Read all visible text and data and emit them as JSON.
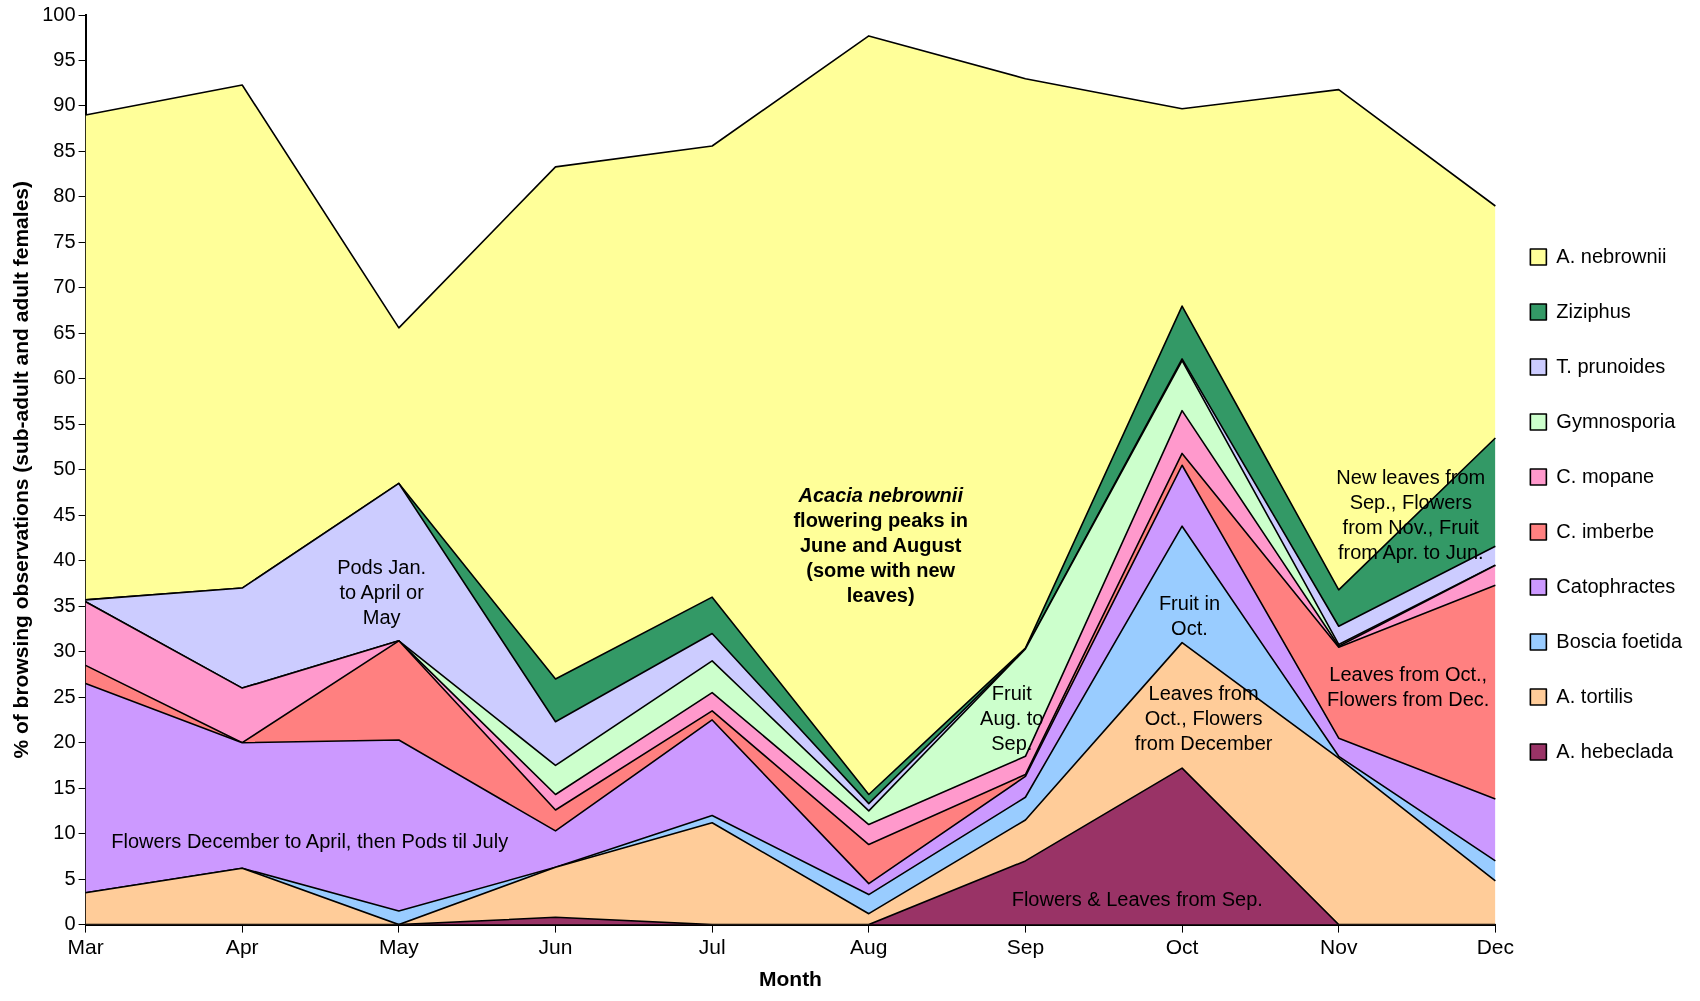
{
  "chart_data": {
    "type": "area",
    "stacked": true,
    "xlabel": "Month",
    "ylabel": "% of browsing observations (sub-adult and adult females)",
    "categories": [
      "Mar",
      "Apr",
      "May",
      "Jun",
      "Jul",
      "Aug",
      "Sep",
      "Oct",
      "Nov",
      "Dec"
    ],
    "ylim": [
      0,
      100
    ],
    "yticks": [
      0,
      5,
      10,
      15,
      20,
      25,
      30,
      35,
      40,
      45,
      50,
      55,
      60,
      65,
      70,
      75,
      80,
      85,
      90,
      95,
      100
    ],
    "grid": false,
    "legend": "right",
    "marker": "none",
    "series": [
      {
        "name": "A. hebeclada",
        "color": "#993366",
        "values": [
          0,
          0,
          0,
          0.8,
          0,
          0,
          7,
          17.2,
          0,
          0
        ]
      },
      {
        "name": "A. tortilis",
        "color": "#ffcc99",
        "values": [
          3.5,
          6.2,
          0,
          5.5,
          11.2,
          1.2,
          4.5,
          13.8,
          18.3,
          4.8
        ]
      },
      {
        "name": "Boscia foetida",
        "color": "#99ccff",
        "values": [
          0,
          0,
          1.5,
          0,
          0.8,
          2.1,
          2.5,
          12.8,
          0.2,
          2.2
        ]
      },
      {
        "name": "Catophractes",
        "color": "#cc99ff",
        "values": [
          23,
          13.8,
          18.8,
          4,
          10.5,
          1.2,
          2.3,
          6.7,
          2,
          6.8
        ]
      },
      {
        "name": "C. imberbe",
        "color": "#ff8080",
        "values": [
          2,
          0,
          10.9,
          2.3,
          1,
          4.3,
          0.2,
          1.3,
          10,
          23.5
        ]
      },
      {
        "name": "C. mopane",
        "color": "#ff99cc",
        "values": [
          7,
          6,
          0,
          1.7,
          2,
          2.2,
          2,
          4.7,
          0.1,
          2.2
        ]
      },
      {
        "name": "Gymnosporia",
        "color": "#ccffcc",
        "values": [
          0,
          0,
          0,
          3.2,
          3.5,
          1.5,
          11.8,
          5.5,
          0.2,
          0
        ]
      },
      {
        "name": "T. prunoides",
        "color": "#ccccff",
        "values": [
          0.2,
          11,
          17.3,
          4.8,
          3,
          0.8,
          0,
          0.2,
          2,
          2.1
        ]
      },
      {
        "name": "Ziziphus",
        "color": "#339966",
        "values": [
          0,
          0,
          0,
          4.7,
          4,
          1,
          0.1,
          5.8,
          4,
          11.9
        ]
      },
      {
        "name": "A. nebrownii",
        "color": "#ffff99",
        "values": [
          53.3,
          55.3,
          17.1,
          56.3,
          49.6,
          83.4,
          62.6,
          21.7,
          55,
          25.5
        ]
      }
    ],
    "annotations": [
      "Flowers December to April, then Pods til July",
      "Pods Jan.\nto April or\nMay",
      "Acacia nebrownii\nflowering peaks in\nJune and August\n(some with new\nleaves)",
      "Fruit\nAug. to\nSep.",
      "Fruit in\nOct.",
      "Leaves from\nOct., Flowers\nfrom December",
      "Flowers & Leaves from Sep.",
      "New leaves from\nSep., Flowers\nfrom Nov., Fruit\nfrom Apr. to Jun.",
      "Leaves from Oct.,\nFlowers from Dec."
    ]
  }
}
